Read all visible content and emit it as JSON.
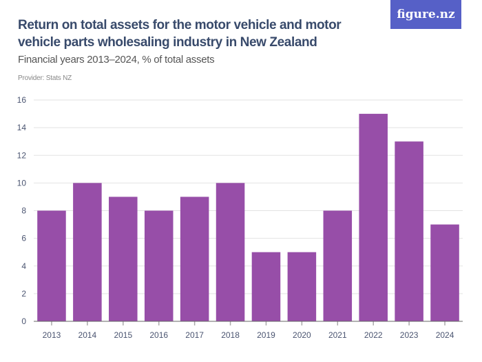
{
  "header": {
    "title": "Return on total assets for the motor vehicle and motor vehicle parts wholesaling industry in New Zealand",
    "subtitle": "Financial years 2013–2024, % of total assets",
    "provider": "Provider: Stats NZ",
    "logo": "figure.nz"
  },
  "chart_data": {
    "type": "bar",
    "title": "Return on total assets for the motor vehicle and motor vehicle parts wholesaling industry in New Zealand",
    "subtitle": "Financial years 2013–2024, % of total assets",
    "categories": [
      "2013",
      "2014",
      "2015",
      "2016",
      "2017",
      "2018",
      "2019",
      "2020",
      "2021",
      "2022",
      "2023",
      "2024"
    ],
    "values": [
      8,
      10,
      9,
      8,
      9,
      10,
      5,
      5,
      8,
      15,
      13,
      7
    ],
    "ylim": [
      0,
      16
    ],
    "yticks": [
      "0",
      "2",
      "4",
      "6",
      "8",
      "10",
      "12",
      "14",
      "16"
    ],
    "grid": true,
    "bar_color": "#974ea8"
  }
}
